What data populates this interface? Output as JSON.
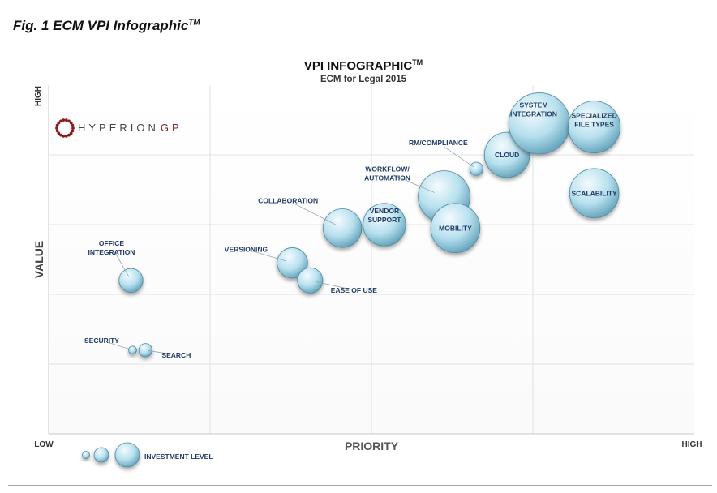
{
  "figure": {
    "title": "Fig. 1 ECM VPI Infographic",
    "title_sup": "TM"
  },
  "logo": {
    "text_main": "HYPERION",
    "text_accent": "GP",
    "accent_color": "#8b1a1a"
  },
  "colors": {
    "bubble_light": "#f4fbfe",
    "bubble_mid": "#b7e0ee",
    "bubble_dark": "#5e9fb8",
    "label": "#1f3b63",
    "grid": "#e2e2e2"
  },
  "chart_data": {
    "type": "scatter",
    "title": "VPI INFOGRAPHIC",
    "title_sup": "TM",
    "subtitle": "ECM for Legal 2015",
    "xlabel": "PRIORITY",
    "ylabel": "VALUE",
    "x_low_label": "LOW",
    "x_high_label": "HIGH",
    "y_high_label": "HIGH",
    "xlim": [
      0,
      4
    ],
    "ylim": [
      0,
      5
    ],
    "grid": true,
    "size_legend": {
      "label": "INVESTMENT LEVEL",
      "sizes": [
        1,
        2,
        3
      ]
    },
    "points": [
      {
        "label": "SECURITY",
        "x": 0.52,
        "y": 1.2,
        "size": 0.6
      },
      {
        "label": "SEARCH",
        "x": 0.6,
        "y": 1.2,
        "size": 1.0
      },
      {
        "label": "OFFICE INTEGRATION",
        "x": 0.51,
        "y": 2.2,
        "size": 1.8
      },
      {
        "label": "VERSIONING",
        "x": 1.51,
        "y": 2.45,
        "size": 2.3
      },
      {
        "label": "EASE OF USE",
        "x": 1.62,
        "y": 2.2,
        "size": 1.9
      },
      {
        "label": "COLLABORATION",
        "x": 1.82,
        "y": 2.95,
        "size": 2.9
      },
      {
        "label": "VENDOR SUPPORT",
        "x": 2.08,
        "y": 3.0,
        "size": 3.2
      },
      {
        "label": "WORKFLOW/ AUTOMATION",
        "x": 2.45,
        "y": 3.4,
        "size": 3.9
      },
      {
        "label": "MOBILITY",
        "x": 2.52,
        "y": 2.95,
        "size": 3.7
      },
      {
        "label": "RM/COMPLIANCE",
        "x": 2.65,
        "y": 3.8,
        "size": 1.0
      },
      {
        "label": "CLOUD",
        "x": 2.84,
        "y": 4.0,
        "size": 3.4
      },
      {
        "label": "SYSTEM INTEGRATION",
        "x": 3.04,
        "y": 4.45,
        "size": 4.6
      },
      {
        "label": "SPECIALIZED FILE TYPES",
        "x": 3.38,
        "y": 4.4,
        "size": 3.9
      },
      {
        "label": "SCALABILITY",
        "x": 3.38,
        "y": 3.45,
        "size": 3.7
      }
    ]
  }
}
